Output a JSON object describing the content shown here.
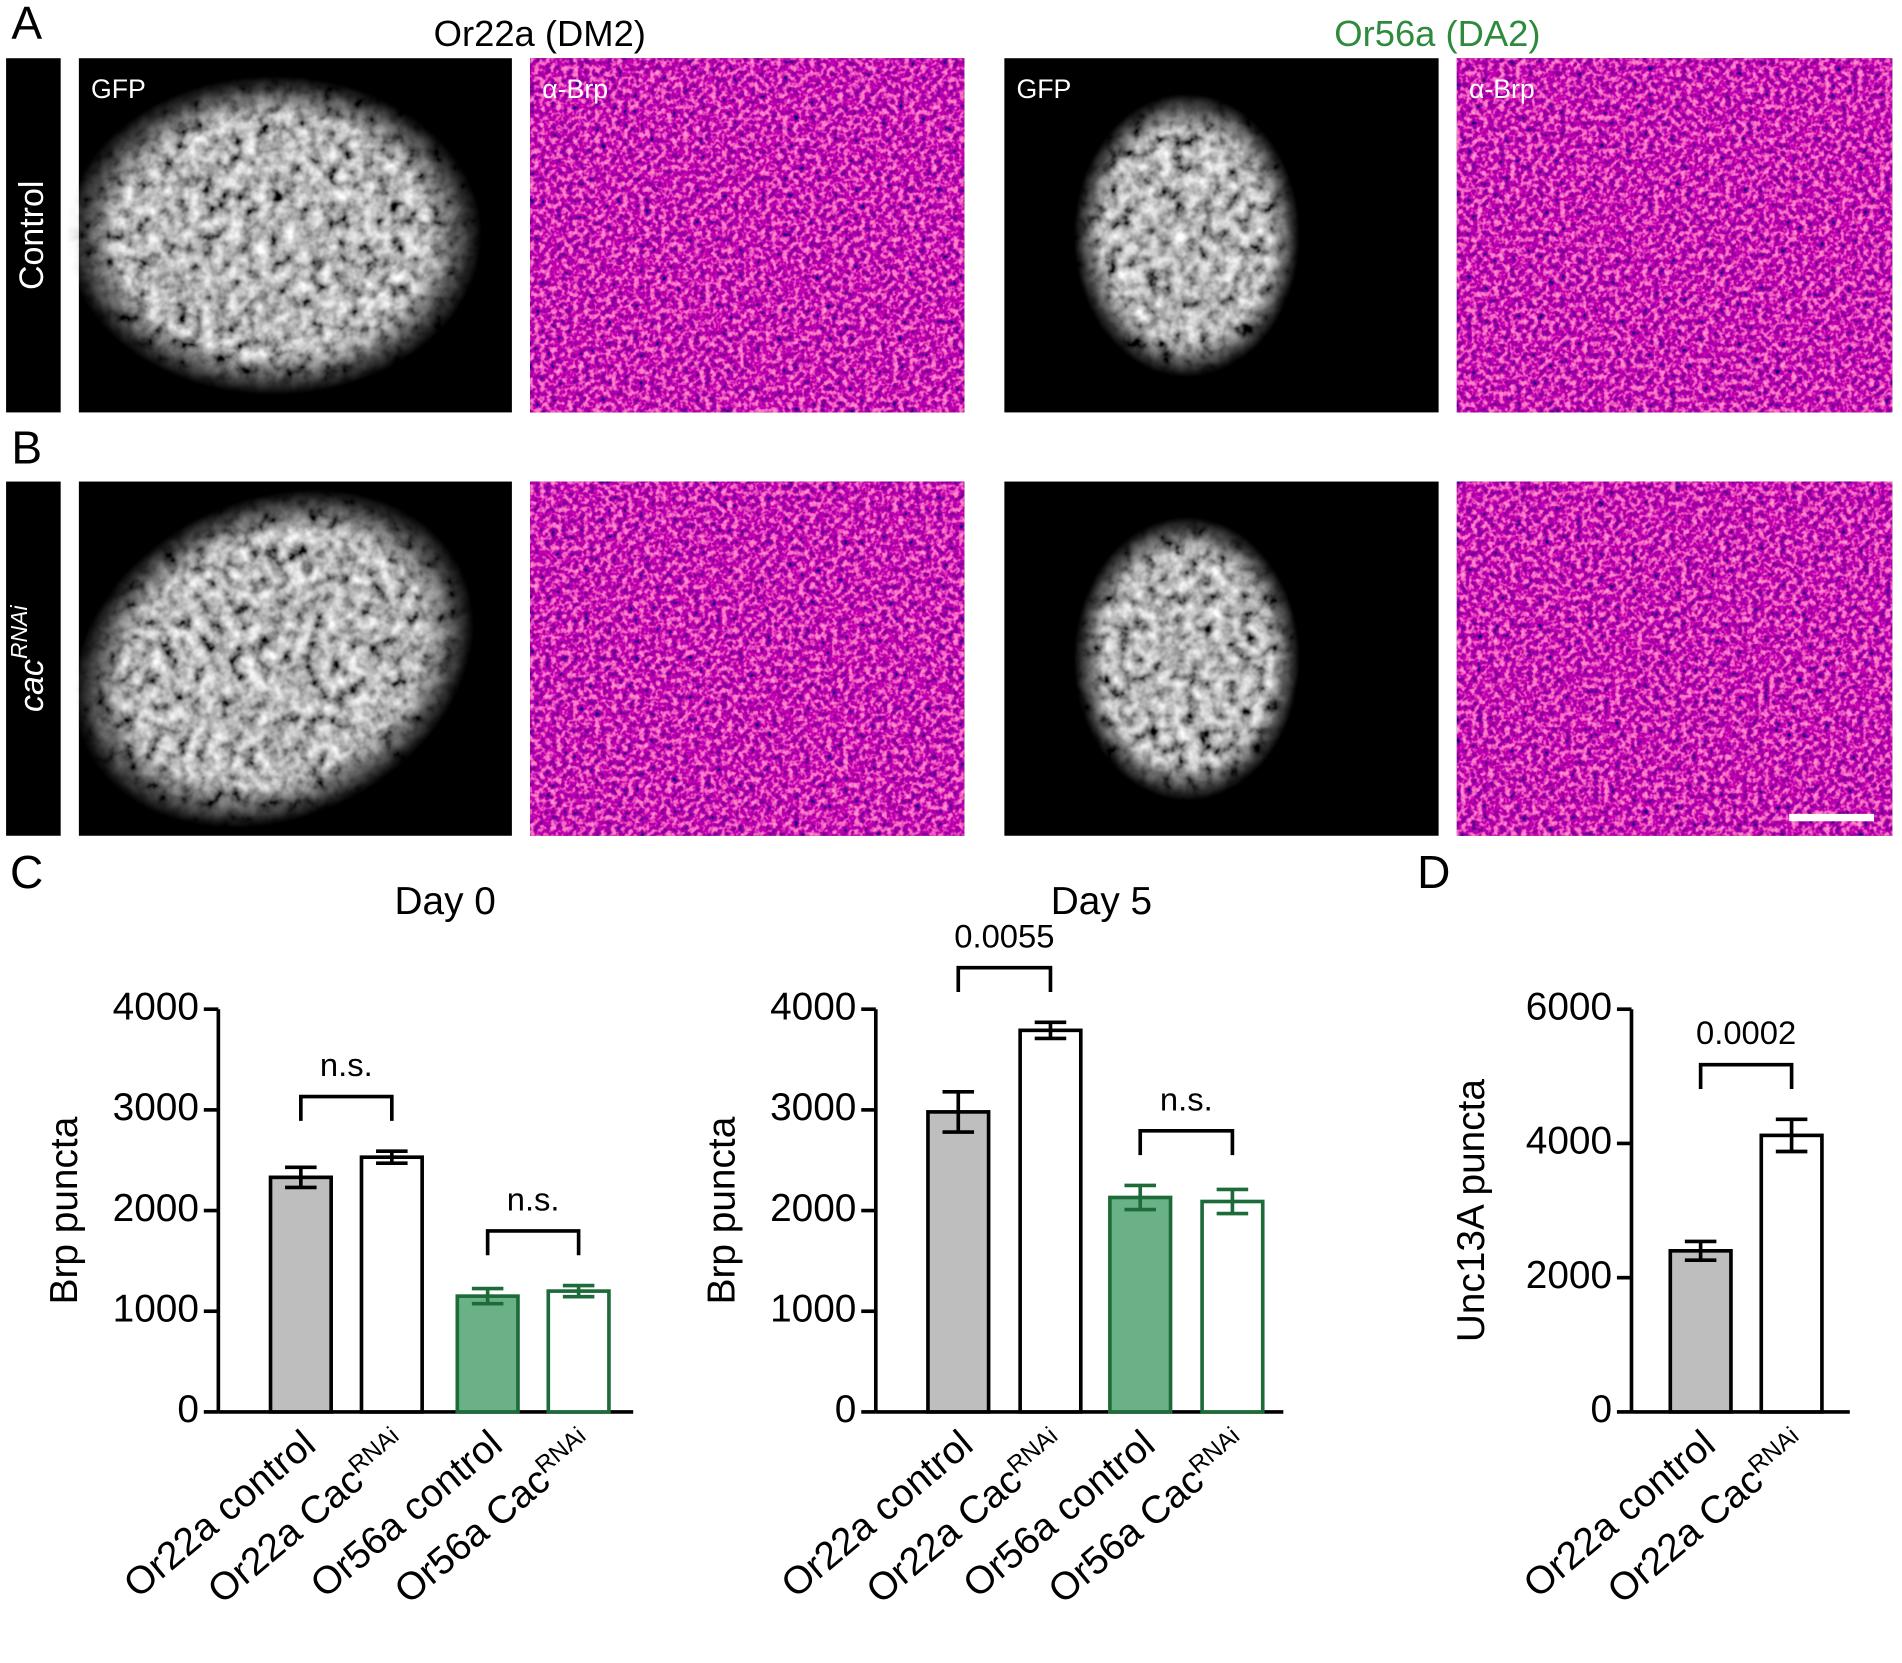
{
  "panel_labels": [
    "A",
    "B",
    "C",
    "D"
  ],
  "image_headers": [
    {
      "text": "Or22a (DM2)",
      "color": "#000000"
    },
    {
      "text": "Or56a (DA2)",
      "color": "#2e8b3e"
    }
  ],
  "row_labels": [
    {
      "text": "Control"
    },
    {
      "text": "cac",
      "sup": "RNAi"
    }
  ],
  "channel_labels": [
    "GFP",
    "α-Brp",
    "GFP",
    "α-Brp"
  ],
  "chart_data": [
    {
      "type": "bar",
      "title": "Day 0",
      "y_label": "Brp puncta",
      "categories": [
        {
          "text": "Or22a control"
        },
        {
          "text": "Or22a Cac",
          "sup": "RNAi"
        },
        {
          "text": "Or56a control"
        },
        {
          "text": "Or56a Cac",
          "sup": "RNAi"
        }
      ],
      "values": [
        2330,
        2530,
        1150,
        1200
      ],
      "errors": [
        100,
        60,
        75,
        55
      ],
      "colors": [
        "#bebebe",
        "#ffffff",
        "#6ab187",
        "#ffffff"
      ],
      "edge_colors": [
        "#000000",
        "#000000",
        "#1e6b3a",
        "#1e6b3a"
      ],
      "ylim": [
        0,
        4000
      ],
      "yticks": [
        0,
        1000,
        2000,
        3000,
        4000
      ],
      "comparisons": [
        {
          "pair": [
            0,
            1
          ],
          "label": "n.s."
        },
        {
          "pair": [
            2,
            3
          ],
          "label": "n.s."
        }
      ]
    },
    {
      "type": "bar",
      "title": "Day 5",
      "y_label": "Brp puncta",
      "categories": [
        {
          "text": "Or22a control"
        },
        {
          "text": "Or22a Cac",
          "sup": "RNAi"
        },
        {
          "text": "Or56a control"
        },
        {
          "text": "Or56a Cac",
          "sup": "RNAi"
        }
      ],
      "values": [
        2980,
        3790,
        2130,
        2090
      ],
      "errors": [
        200,
        80,
        120,
        120
      ],
      "colors": [
        "#bebebe",
        "#ffffff",
        "#6ab187",
        "#ffffff"
      ],
      "edge_colors": [
        "#000000",
        "#000000",
        "#1e6b3a",
        "#1e6b3a"
      ],
      "ylim": [
        0,
        4000
      ],
      "yticks": [
        0,
        1000,
        2000,
        3000,
        4000
      ],
      "comparisons": [
        {
          "pair": [
            0,
            1
          ],
          "label": "0.0055"
        },
        {
          "pair": [
            2,
            3
          ],
          "label": "n.s."
        }
      ]
    },
    {
      "type": "bar",
      "y_label": "Unc13A puncta",
      "categories": [
        {
          "text": "Or22a control"
        },
        {
          "text": "Or22a Cac",
          "sup": "RNAi"
        }
      ],
      "values": [
        2400,
        4120
      ],
      "errors": [
        140,
        240
      ],
      "colors": [
        "#bebebe",
        "#ffffff"
      ],
      "edge_colors": [
        "#000000",
        "#000000"
      ],
      "ylim": [
        0,
        6000
      ],
      "yticks": [
        0,
        2000,
        4000,
        6000
      ],
      "comparisons": [
        {
          "pair": [
            0,
            1
          ],
          "label": "0.0002"
        }
      ]
    }
  ]
}
